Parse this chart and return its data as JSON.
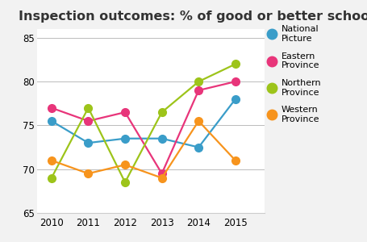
{
  "title": "Inspection outcomes: % of good or better schools",
  "years": [
    2010,
    2011,
    2012,
    2013,
    2014,
    2015
  ],
  "series": [
    {
      "label": "National\nPicture",
      "color": "#3a9dc9",
      "values": [
        75.5,
        73,
        73.5,
        73.5,
        72.5,
        78
      ]
    },
    {
      "label": "Eastern\nProvince",
      "color": "#e8357a",
      "values": [
        77,
        75.5,
        76.5,
        69.5,
        79,
        80
      ]
    },
    {
      "label": "Northern\nProvince",
      "color": "#9dc41a",
      "values": [
        69,
        77,
        68.5,
        76.5,
        80,
        82
      ]
    },
    {
      "label": "Western\nProvince",
      "color": "#f7941d",
      "values": [
        71,
        69.5,
        70.5,
        69,
        75.5,
        71
      ]
    }
  ],
  "ylim": [
    65,
    86
  ],
  "yticks": [
    65,
    70,
    75,
    80,
    85
  ],
  "xlim": [
    2009.6,
    2015.8
  ],
  "background_color": "#f2f2f2",
  "plot_bg_color": "#ffffff",
  "title_fontsize": 11.5,
  "marker_size": 7,
  "linewidth": 1.6
}
